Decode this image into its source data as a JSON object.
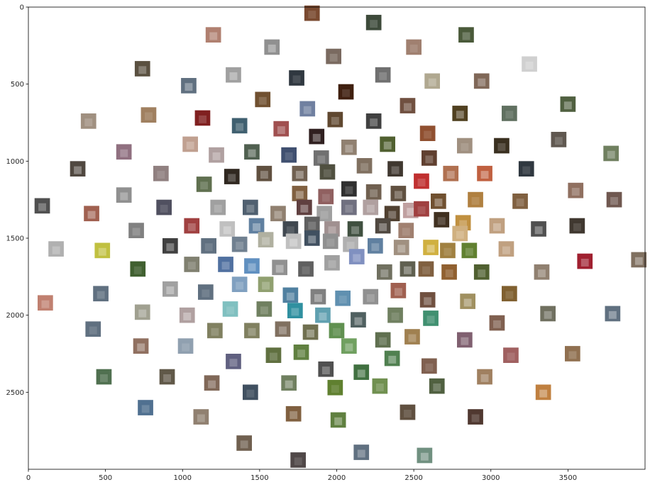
{
  "chart_data": {
    "type": "scatter",
    "marker": "image-thumbnail",
    "title": "",
    "xlabel": "",
    "ylabel": "",
    "xlim": [
      0,
      4000
    ],
    "ylim": [
      3000,
      0
    ],
    "y_inverted": true,
    "grid": false,
    "legend": "none",
    "x_ticks": [
      0,
      500,
      1000,
      1500,
      2000,
      2500,
      3000,
      3500
    ],
    "x_tick_labels": [
      "0",
      "500",
      "1000",
      "1500",
      "2000",
      "2500",
      "3000",
      "3500"
    ],
    "y_ticks": [
      0,
      500,
      1000,
      1500,
      2000,
      2500
    ],
    "y_tick_labels": [
      "0",
      "500",
      "1000",
      "1500",
      "2000",
      "2500"
    ],
    "thumbnail_size": [
      100,
      100
    ],
    "points": [
      {
        "x": 1840,
        "y": 40,
        "color": "#7a4a30"
      },
      {
        "x": 2240,
        "y": 100,
        "color": "#3d4a3a"
      },
      {
        "x": 2840,
        "y": 180,
        "color": "#4a5a3a"
      },
      {
        "x": 1200,
        "y": 180,
        "color": "#b08070"
      },
      {
        "x": 1580,
        "y": 260,
        "color": "#909090"
      },
      {
        "x": 2500,
        "y": 260,
        "color": "#a08070"
      },
      {
        "x": 1980,
        "y": 320,
        "color": "#7a6a60"
      },
      {
        "x": 3250,
        "y": 370,
        "color": "#d0d0d0"
      },
      {
        "x": 740,
        "y": 400,
        "color": "#5a5040"
      },
      {
        "x": 1330,
        "y": 440,
        "color": "#a0a0a0"
      },
      {
        "x": 1740,
        "y": 460,
        "color": "#303840"
      },
      {
        "x": 2300,
        "y": 440,
        "color": "#707070"
      },
      {
        "x": 2620,
        "y": 480,
        "color": "#b0a890"
      },
      {
        "x": 2940,
        "y": 480,
        "color": "#806858"
      },
      {
        "x": 1040,
        "y": 510,
        "color": "#607080"
      },
      {
        "x": 2060,
        "y": 550,
        "color": "#402010"
      },
      {
        "x": 1520,
        "y": 600,
        "color": "#705030"
      },
      {
        "x": 1810,
        "y": 660,
        "color": "#7080a0"
      },
      {
        "x": 2460,
        "y": 640,
        "color": "#705040"
      },
      {
        "x": 3500,
        "y": 630,
        "color": "#506040"
      },
      {
        "x": 780,
        "y": 700,
        "color": "#a08060"
      },
      {
        "x": 1130,
        "y": 720,
        "color": "#802020"
      },
      {
        "x": 1990,
        "y": 730,
        "color": "#604830"
      },
      {
        "x": 2240,
        "y": 740,
        "color": "#404040"
      },
      {
        "x": 2800,
        "y": 690,
        "color": "#504020"
      },
      {
        "x": 3120,
        "y": 690,
        "color": "#607060"
      },
      {
        "x": 390,
        "y": 740,
        "color": "#a09080"
      },
      {
        "x": 1370,
        "y": 770,
        "color": "#406070"
      },
      {
        "x": 1640,
        "y": 790,
        "color": "#a05050"
      },
      {
        "x": 1870,
        "y": 840,
        "color": "#302020"
      },
      {
        "x": 2590,
        "y": 820,
        "color": "#905030"
      },
      {
        "x": 3440,
        "y": 860,
        "color": "#605850"
      },
      {
        "x": 1050,
        "y": 890,
        "color": "#c0a090"
      },
      {
        "x": 2080,
        "y": 910,
        "color": "#908070"
      },
      {
        "x": 2330,
        "y": 890,
        "color": "#506030"
      },
      {
        "x": 2830,
        "y": 900,
        "color": "#a09080"
      },
      {
        "x": 3070,
        "y": 900,
        "color": "#3a3020"
      },
      {
        "x": 620,
        "y": 940,
        "color": "#907080"
      },
      {
        "x": 1220,
        "y": 960,
        "color": "#b0a0a0"
      },
      {
        "x": 1450,
        "y": 940,
        "color": "#506050"
      },
      {
        "x": 1690,
        "y": 960,
        "color": "#405070"
      },
      {
        "x": 1900,
        "y": 980,
        "color": "#707070"
      },
      {
        "x": 2600,
        "y": 980,
        "color": "#604030"
      },
      {
        "x": 3780,
        "y": 950,
        "color": "#708060"
      },
      {
        "x": 320,
        "y": 1050,
        "color": "#504840"
      },
      {
        "x": 860,
        "y": 1080,
        "color": "#908080"
      },
      {
        "x": 1140,
        "y": 1150,
        "color": "#607050"
      },
      {
        "x": 1320,
        "y": 1100,
        "color": "#302820"
      },
      {
        "x": 1530,
        "y": 1080,
        "color": "#605040"
      },
      {
        "x": 1760,
        "y": 1080,
        "color": "#706050"
      },
      {
        "x": 1940,
        "y": 1070,
        "color": "#505040"
      },
      {
        "x": 2180,
        "y": 1030,
        "color": "#807060"
      },
      {
        "x": 2380,
        "y": 1050,
        "color": "#403830"
      },
      {
        "x": 2740,
        "y": 1080,
        "color": "#b07050"
      },
      {
        "x": 2960,
        "y": 1080,
        "color": "#c06040"
      },
      {
        "x": 3230,
        "y": 1050,
        "color": "#303840"
      },
      {
        "x": 2550,
        "y": 1130,
        "color": "#c03030"
      },
      {
        "x": 3550,
        "y": 1190,
        "color": "#907060"
      },
      {
        "x": 620,
        "y": 1220,
        "color": "#909090"
      },
      {
        "x": 1760,
        "y": 1210,
        "color": "#806040"
      },
      {
        "x": 1930,
        "y": 1230,
        "color": "#906060"
      },
      {
        "x": 2080,
        "y": 1180,
        "color": "#303030"
      },
      {
        "x": 2240,
        "y": 1200,
        "color": "#706050"
      },
      {
        "x": 2400,
        "y": 1210,
        "color": "#605040"
      },
      {
        "x": 2660,
        "y": 1260,
        "color": "#705030"
      },
      {
        "x": 2900,
        "y": 1250,
        "color": "#b08040"
      },
      {
        "x": 3190,
        "y": 1260,
        "color": "#806040"
      },
      {
        "x": 3800,
        "y": 1250,
        "color": "#705850"
      },
      {
        "x": 90,
        "y": 1290,
        "color": "#505050"
      },
      {
        "x": 410,
        "y": 1340,
        "color": "#a06050"
      },
      {
        "x": 880,
        "y": 1300,
        "color": "#505060"
      },
      {
        "x": 1230,
        "y": 1300,
        "color": "#a0a0a0"
      },
      {
        "x": 1440,
        "y": 1300,
        "color": "#506070"
      },
      {
        "x": 1620,
        "y": 1340,
        "color": "#908070"
      },
      {
        "x": 1790,
        "y": 1300,
        "color": "#604040"
      },
      {
        "x": 1920,
        "y": 1340,
        "color": "#a0a0a0"
      },
      {
        "x": 2080,
        "y": 1300,
        "color": "#707080"
      },
      {
        "x": 2220,
        "y": 1300,
        "color": "#b0a0a0"
      },
      {
        "x": 2360,
        "y": 1340,
        "color": "#504030"
      },
      {
        "x": 2480,
        "y": 1320,
        "color": "#c0a0a0"
      },
      {
        "x": 2550,
        "y": 1310,
        "color": "#a04040"
      },
      {
        "x": 2680,
        "y": 1380,
        "color": "#403020"
      },
      {
        "x": 2820,
        "y": 1400,
        "color": "#c09040"
      },
      {
        "x": 3040,
        "y": 1420,
        "color": "#c0a080"
      },
      {
        "x": 3310,
        "y": 1440,
        "color": "#505050"
      },
      {
        "x": 3560,
        "y": 1420,
        "color": "#403830"
      },
      {
        "x": 700,
        "y": 1450,
        "color": "#808080"
      },
      {
        "x": 1060,
        "y": 1420,
        "color": "#a04040"
      },
      {
        "x": 1290,
        "y": 1440,
        "color": "#c0c0c0"
      },
      {
        "x": 1480,
        "y": 1420,
        "color": "#6080a0"
      },
      {
        "x": 1700,
        "y": 1440,
        "color": "#404850"
      },
      {
        "x": 1840,
        "y": 1410,
        "color": "#606060"
      },
      {
        "x": 1970,
        "y": 1440,
        "color": "#a09090"
      },
      {
        "x": 2120,
        "y": 1440,
        "color": "#405040"
      },
      {
        "x": 2300,
        "y": 1420,
        "color": "#504840"
      },
      {
        "x": 2450,
        "y": 1450,
        "color": "#a08070"
      },
      {
        "x": 2800,
        "y": 1470,
        "color": "#d0b080"
      },
      {
        "x": 180,
        "y": 1570,
        "color": "#b0b0b0"
      },
      {
        "x": 480,
        "y": 1580,
        "color": "#c0c040"
      },
      {
        "x": 920,
        "y": 1550,
        "color": "#404040"
      },
      {
        "x": 1170,
        "y": 1550,
        "color": "#607080"
      },
      {
        "x": 1370,
        "y": 1540,
        "color": "#708090"
      },
      {
        "x": 1540,
        "y": 1510,
        "color": "#b0b0a0"
      },
      {
        "x": 1720,
        "y": 1520,
        "color": "#c0c0c0"
      },
      {
        "x": 1840,
        "y": 1500,
        "color": "#405060"
      },
      {
        "x": 1960,
        "y": 1520,
        "color": "#909090"
      },
      {
        "x": 2090,
        "y": 1540,
        "color": "#b0b0b0"
      },
      {
        "x": 2250,
        "y": 1550,
        "color": "#6080a0"
      },
      {
        "x": 2420,
        "y": 1560,
        "color": "#a09080"
      },
      {
        "x": 2610,
        "y": 1560,
        "color": "#d0b040"
      },
      {
        "x": 2720,
        "y": 1580,
        "color": "#a08040"
      },
      {
        "x": 2860,
        "y": 1580,
        "color": "#608030"
      },
      {
        "x": 3100,
        "y": 1570,
        "color": "#c0a080"
      },
      {
        "x": 3610,
        "y": 1650,
        "color": "#a02030"
      },
      {
        "x": 3960,
        "y": 1640,
        "color": "#807060"
      },
      {
        "x": 710,
        "y": 1700,
        "color": "#406030"
      },
      {
        "x": 1060,
        "y": 1670,
        "color": "#808070"
      },
      {
        "x": 1280,
        "y": 1670,
        "color": "#5070a0"
      },
      {
        "x": 1450,
        "y": 1680,
        "color": "#6090c0"
      },
      {
        "x": 1630,
        "y": 1690,
        "color": "#909090"
      },
      {
        "x": 1800,
        "y": 1700,
        "color": "#606060"
      },
      {
        "x": 1970,
        "y": 1660,
        "color": "#a0a0a0"
      },
      {
        "x": 2130,
        "y": 1620,
        "color": "#8090c0"
      },
      {
        "x": 2310,
        "y": 1720,
        "color": "#707060"
      },
      {
        "x": 2460,
        "y": 1700,
        "color": "#606050"
      },
      {
        "x": 2580,
        "y": 1700,
        "color": "#806040"
      },
      {
        "x": 2730,
        "y": 1720,
        "color": "#906030"
      },
      {
        "x": 2940,
        "y": 1720,
        "color": "#506030"
      },
      {
        "x": 3330,
        "y": 1720,
        "color": "#908070"
      },
      {
        "x": 920,
        "y": 1830,
        "color": "#a0a0a0"
      },
      {
        "x": 1150,
        "y": 1850,
        "color": "#607080"
      },
      {
        "x": 1370,
        "y": 1800,
        "color": "#80a0c0"
      },
      {
        "x": 1540,
        "y": 1800,
        "color": "#90a070"
      },
      {
        "x": 1700,
        "y": 1870,
        "color": "#5080a0"
      },
      {
        "x": 1880,
        "y": 1880,
        "color": "#808080"
      },
      {
        "x": 2040,
        "y": 1890,
        "color": "#6090b0"
      },
      {
        "x": 2220,
        "y": 1880,
        "color": "#909090"
      },
      {
        "x": 2400,
        "y": 1840,
        "color": "#a06050"
      },
      {
        "x": 2590,
        "y": 1900,
        "color": "#705040"
      },
      {
        "x": 2850,
        "y": 1910,
        "color": "#a09060"
      },
      {
        "x": 3120,
        "y": 1860,
        "color": "#806030"
      },
      {
        "x": 470,
        "y": 1860,
        "color": "#607080"
      },
      {
        "x": 110,
        "y": 1920,
        "color": "#c08070"
      },
      {
        "x": 740,
        "y": 1980,
        "color": "#a0a090"
      },
      {
        "x": 1030,
        "y": 2000,
        "color": "#b0a0a0"
      },
      {
        "x": 1310,
        "y": 1960,
        "color": "#80c0c0"
      },
      {
        "x": 1530,
        "y": 1960,
        "color": "#708060"
      },
      {
        "x": 1730,
        "y": 1970,
        "color": "#3090a0"
      },
      {
        "x": 1910,
        "y": 2000,
        "color": "#60a0b0"
      },
      {
        "x": 2140,
        "y": 2030,
        "color": "#506060"
      },
      {
        "x": 2380,
        "y": 2000,
        "color": "#708060"
      },
      {
        "x": 2610,
        "y": 2020,
        "color": "#409070"
      },
      {
        "x": 3040,
        "y": 2050,
        "color": "#806050"
      },
      {
        "x": 3370,
        "y": 1990,
        "color": "#707060"
      },
      {
        "x": 3790,
        "y": 1990,
        "color": "#607080"
      },
      {
        "x": 420,
        "y": 2090,
        "color": "#607080"
      },
      {
        "x": 1210,
        "y": 2100,
        "color": "#808060"
      },
      {
        "x": 1450,
        "y": 2100,
        "color": "#808060"
      },
      {
        "x": 1650,
        "y": 2090,
        "color": "#807060"
      },
      {
        "x": 1830,
        "y": 2110,
        "color": "#707050"
      },
      {
        "x": 2000,
        "y": 2100,
        "color": "#609050"
      },
      {
        "x": 2300,
        "y": 2160,
        "color": "#607050"
      },
      {
        "x": 2490,
        "y": 2140,
        "color": "#a08050"
      },
      {
        "x": 2830,
        "y": 2160,
        "color": "#806070"
      },
      {
        "x": 730,
        "y": 2200,
        "color": "#907060"
      },
      {
        "x": 1020,
        "y": 2200,
        "color": "#90a0b0"
      },
      {
        "x": 1590,
        "y": 2260,
        "color": "#607040"
      },
      {
        "x": 1770,
        "y": 2240,
        "color": "#608040"
      },
      {
        "x": 2080,
        "y": 2200,
        "color": "#70a060"
      },
      {
        "x": 2360,
        "y": 2280,
        "color": "#508050"
      },
      {
        "x": 3130,
        "y": 2260,
        "color": "#a06060"
      },
      {
        "x": 3530,
        "y": 2250,
        "color": "#907050"
      },
      {
        "x": 1330,
        "y": 2300,
        "color": "#606080"
      },
      {
        "x": 1930,
        "y": 2350,
        "color": "#505050"
      },
      {
        "x": 2160,
        "y": 2370,
        "color": "#407040"
      },
      {
        "x": 2600,
        "y": 2330,
        "color": "#806050"
      },
      {
        "x": 490,
        "y": 2400,
        "color": "#507050"
      },
      {
        "x": 900,
        "y": 2400,
        "color": "#605848"
      },
      {
        "x": 1190,
        "y": 2440,
        "color": "#806858"
      },
      {
        "x": 1690,
        "y": 2440,
        "color": "#708060"
      },
      {
        "x": 1990,
        "y": 2470,
        "color": "#608030"
      },
      {
        "x": 2280,
        "y": 2460,
        "color": "#709050"
      },
      {
        "x": 2650,
        "y": 2460,
        "color": "#506040"
      },
      {
        "x": 2960,
        "y": 2400,
        "color": "#a08060"
      },
      {
        "x": 3340,
        "y": 2500,
        "color": "#c08040"
      },
      {
        "x": 1440,
        "y": 2500,
        "color": "#405060"
      },
      {
        "x": 760,
        "y": 2600,
        "color": "#507090"
      },
      {
        "x": 1120,
        "y": 2660,
        "color": "#908070"
      },
      {
        "x": 1720,
        "y": 2640,
        "color": "#806040"
      },
      {
        "x": 2010,
        "y": 2680,
        "color": "#608040"
      },
      {
        "x": 2460,
        "y": 2630,
        "color": "#605040"
      },
      {
        "x": 2900,
        "y": 2660,
        "color": "#503830"
      },
      {
        "x": 1400,
        "y": 2830,
        "color": "#706050"
      },
      {
        "x": 2160,
        "y": 2890,
        "color": "#607080"
      },
      {
        "x": 2570,
        "y": 2910,
        "color": "#709080"
      },
      {
        "x": 1750,
        "y": 2940,
        "color": "#504848"
      }
    ]
  }
}
